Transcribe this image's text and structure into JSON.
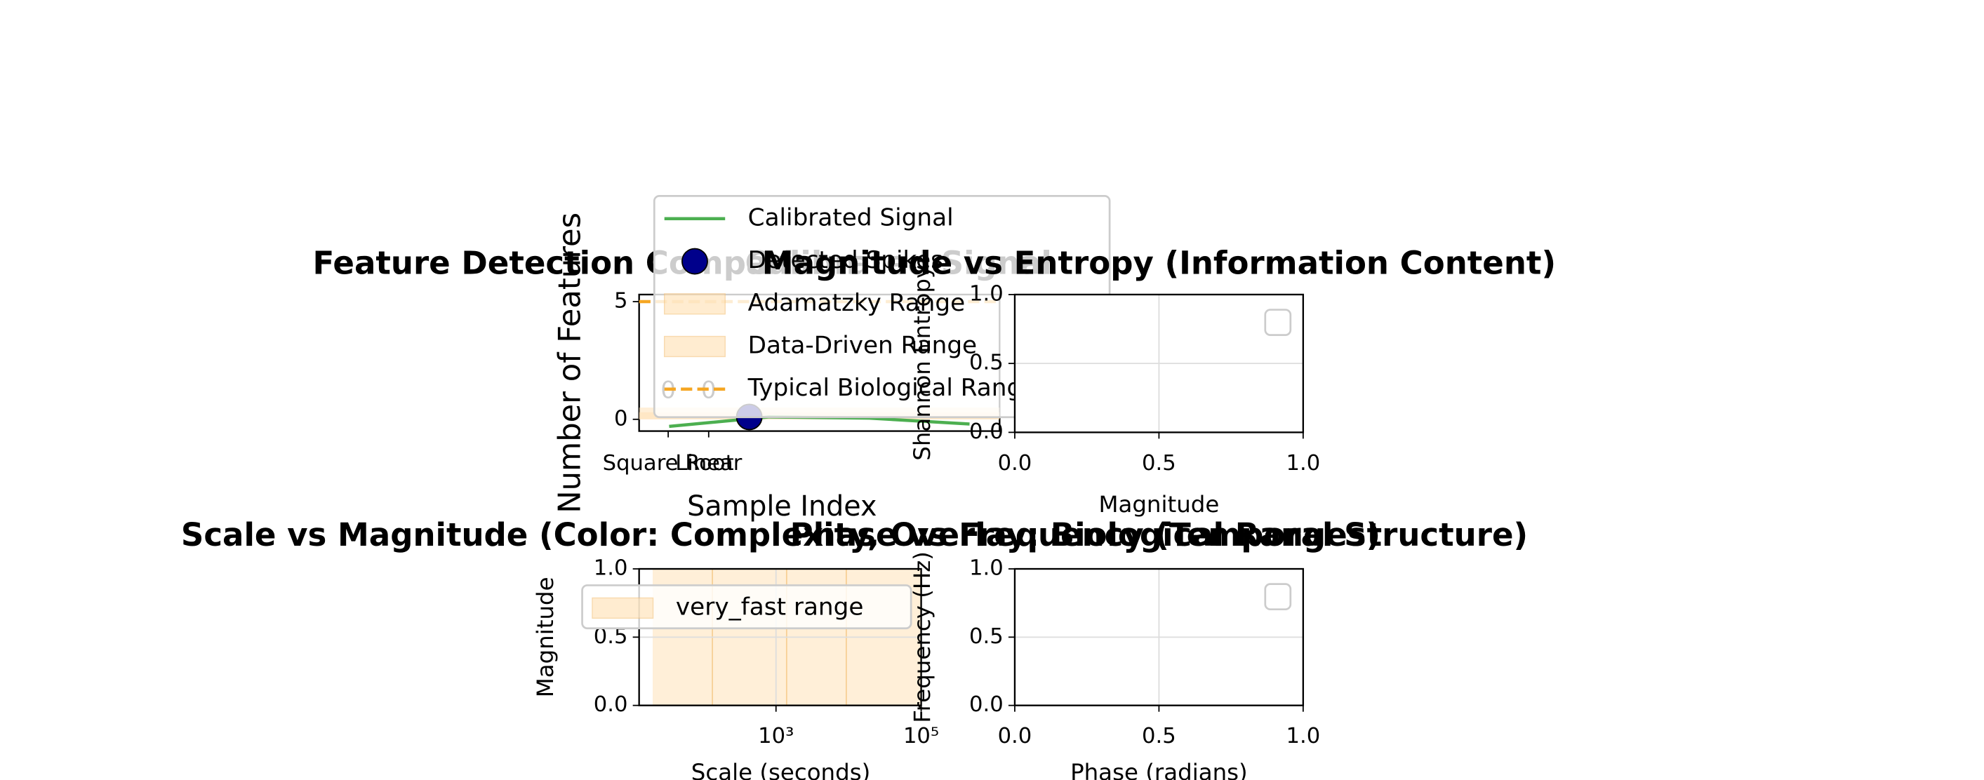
{
  "chart_data": [
    {
      "type": "bar",
      "title": "Feature Detection Comparison",
      "ylabel": "Number of Features",
      "categories": [
        "Square Root",
        "Linear"
      ],
      "values": [
        0,
        0
      ],
      "color": "#4c72b0",
      "ylim": [
        -0.5,
        5.3
      ],
      "yticks": [
        0,
        5
      ]
    },
    {
      "type": "line",
      "title": "Calibrated Signal",
      "xlabel": "Sample Index",
      "x": [
        0,
        1,
        2,
        3
      ],
      "xlim": [
        -0.3,
        3.3
      ],
      "ylim": [
        -0.5,
        5.3
      ],
      "series": [
        {
          "name": "Calibrated Signal",
          "color": "#4caf50",
          "values": [
            -0.3,
            0.1,
            0.05,
            -0.2
          ]
        }
      ],
      "spikes": {
        "name": "Detected Spikes",
        "color": "#00008b",
        "x": [
          0.8
        ],
        "values": [
          0.1
        ]
      },
      "hspans": [
        {
          "name": "Adamatzky Range",
          "color": "#ffe0b2",
          "range": [
            0,
            0.5
          ]
        },
        {
          "name": "Data-Driven Range",
          "color": "#ffe0b2",
          "range": [
            0,
            0.3
          ]
        }
      ],
      "hlines": [
        {
          "name": "Typical Biological Range",
          "color": "#f5a623",
          "value": 5
        }
      ]
    },
    {
      "type": "scatter",
      "title": "Magnitude vs Entropy (Information Content)",
      "xlabel": "Magnitude",
      "ylabel": "Shannon Entropy",
      "xlim": [
        0,
        1
      ],
      "ylim": [
        0,
        1
      ],
      "grid": true,
      "xticks": [
        {
          "value": 0,
          "label": "0.0"
        },
        {
          "value": 0.5,
          "label": "0.5"
        },
        {
          "value": 1,
          "label": "1.0"
        }
      ],
      "yticks": [
        {
          "value": 0,
          "label": "0.0"
        },
        {
          "value": 0.5,
          "label": "0.5"
        },
        {
          "value": 1,
          "label": "1.0"
        }
      ]
    },
    {
      "type": "scatter",
      "title": "Scale vs Magnitude (Color: Complexity, Overlay: Biological Ranges)",
      "xlabel": "Scale (seconds)",
      "ylabel": "Magnitude",
      "xscale": "log",
      "xlim": [
        13,
        100000
      ],
      "ylim": [
        0,
        1
      ],
      "grid": true,
      "xticks": [
        {
          "value": 1000,
          "label": "10³"
        },
        {
          "value": 100000,
          "label": "10⁵"
        }
      ],
      "yticks": [
        {
          "value": 0,
          "label": "0.0"
        },
        {
          "value": 0.5,
          "label": "0.5"
        },
        {
          "value": 1,
          "label": "1.0"
        }
      ],
      "vspans": [
        {
          "name": "very_fast range",
          "color": "#ffe0b2",
          "range": [
            20,
            100000
          ]
        }
      ],
      "vlines": [
        {
          "color": "#f5c27a",
          "value": 133
        },
        {
          "color": "#f5c27a",
          "value": 1400
        },
        {
          "color": "#f5c27a",
          "value": 9300
        }
      ]
    },
    {
      "type": "scatter",
      "title": "Phase vs Frequency (Temporal Structure)",
      "xlabel": "Phase (radians)",
      "ylabel": "Frequency (Hz)",
      "xlim": [
        0,
        1
      ],
      "ylim": [
        0,
        1
      ],
      "grid": true,
      "xticks": [
        {
          "value": 0,
          "label": "0.0"
        },
        {
          "value": 0.5,
          "label": "0.5"
        },
        {
          "value": 1,
          "label": "1.0"
        }
      ],
      "yticks": [
        {
          "value": 0,
          "label": "0.0"
        },
        {
          "value": 0.5,
          "label": "0.5"
        },
        {
          "value": 1,
          "label": "1.0"
        }
      ]
    }
  ]
}
